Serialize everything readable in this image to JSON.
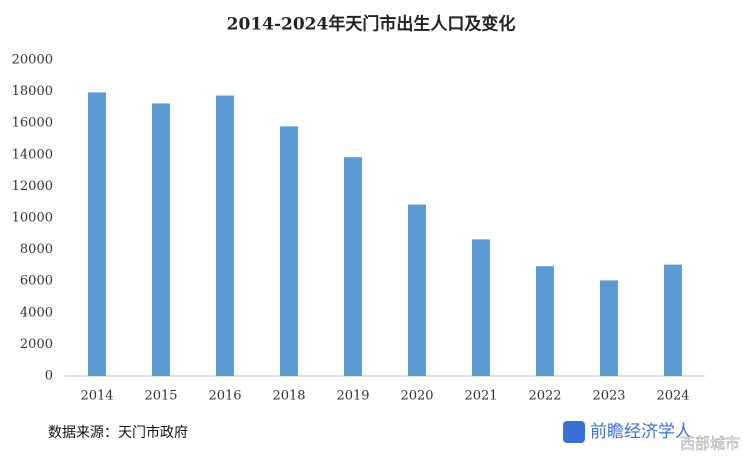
{
  "chart_data": {
    "type": "bar",
    "title": "2014-2024年天门市出生人口及变化",
    "categories": [
      "2014",
      "2015",
      "2016",
      "2018",
      "2019",
      "2020",
      "2021",
      "2022",
      "2023",
      "2024"
    ],
    "values": [
      17950,
      17250,
      17750,
      15800,
      13850,
      10850,
      8650,
      6950,
      6050,
      7050
    ],
    "color": "#5b9bd5",
    "ylim": [
      0,
      20000
    ],
    "yticks": [
      0,
      2000,
      4000,
      6000,
      8000,
      10000,
      12000,
      14000,
      16000,
      18000,
      20000
    ],
    "grid": false,
    "source": "数据来源：天门市政府",
    "logo": "前瞻经济学人",
    "watermark": "西部城市"
  }
}
